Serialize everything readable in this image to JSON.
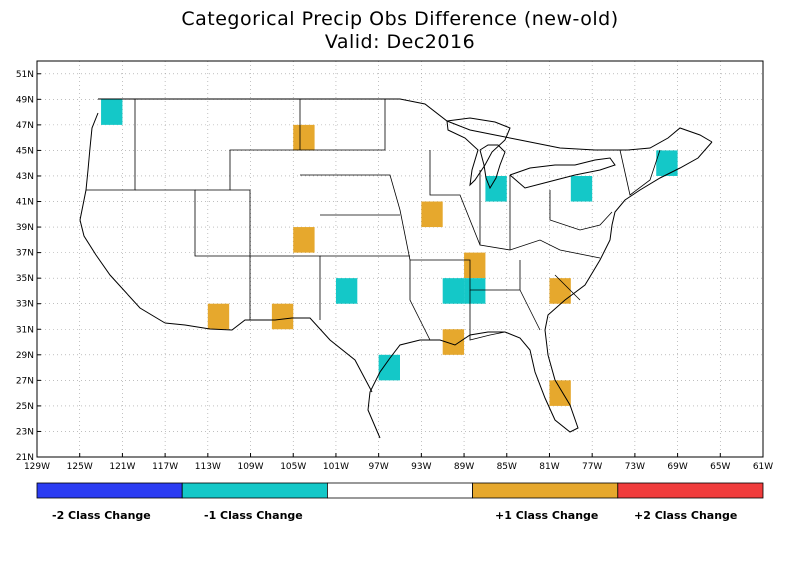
{
  "title": "Categorical Precip Obs Difference (new-old)",
  "subtitle": "Valid: Dec2016",
  "map": {
    "lon_min": -129,
    "lon_max": -61,
    "lat_min": 21,
    "lat_max": 52,
    "lat_ticks": [
      "51N",
      "49N",
      "47N",
      "45N",
      "43N",
      "41N",
      "39N",
      "37N",
      "35N",
      "33N",
      "31N",
      "29N",
      "27N",
      "25N",
      "23N",
      "21N"
    ],
    "lon_ticks": [
      "129W",
      "125W",
      "121W",
      "117W",
      "113W",
      "109W",
      "105W",
      "101W",
      "97W",
      "93W",
      "89W",
      "85W",
      "81W",
      "77W",
      "73W",
      "69W",
      "65W",
      "61W"
    ],
    "grid": true
  },
  "cells": [
    {
      "lon": -122,
      "lat": 48,
      "class": -1
    },
    {
      "lon": -104,
      "lat": 46,
      "class": 1
    },
    {
      "lon": -70,
      "lat": 44,
      "class": -1
    },
    {
      "lon": -86,
      "lat": 42,
      "class": -1
    },
    {
      "lon": -78,
      "lat": 42,
      "class": -1
    },
    {
      "lon": -92,
      "lat": 40,
      "class": 1
    },
    {
      "lon": -104,
      "lat": 38,
      "class": 1
    },
    {
      "lon": -88,
      "lat": 36,
      "class": 1
    },
    {
      "lon": -100,
      "lat": 34,
      "class": -1
    },
    {
      "lon": -90,
      "lat": 34,
      "class": -1
    },
    {
      "lon": -88,
      "lat": 34,
      "class": -1
    },
    {
      "lon": -80,
      "lat": 34,
      "class": 1
    },
    {
      "lon": -112,
      "lat": 32,
      "class": 1
    },
    {
      "lon": -106,
      "lat": 32,
      "class": 1
    },
    {
      "lon": -90,
      "lat": 30,
      "class": 1
    },
    {
      "lon": -96,
      "lat": 28,
      "class": -1
    },
    {
      "lon": -80,
      "lat": 26,
      "class": 1
    }
  ],
  "legend": {
    "items": [
      {
        "label": "-2 Class Change",
        "color": "#2b3cf2",
        "value": -2
      },
      {
        "label": "-1 Class Change",
        "color": "#14c8c8",
        "value": -1
      },
      {
        "label": "",
        "color": "#ffffff",
        "value": 0
      },
      {
        "label": "+1 Class Change",
        "color": "#e6a82d",
        "value": 1
      },
      {
        "label": "+2 Class Change",
        "color": "#f03c3c",
        "value": 2
      }
    ]
  }
}
